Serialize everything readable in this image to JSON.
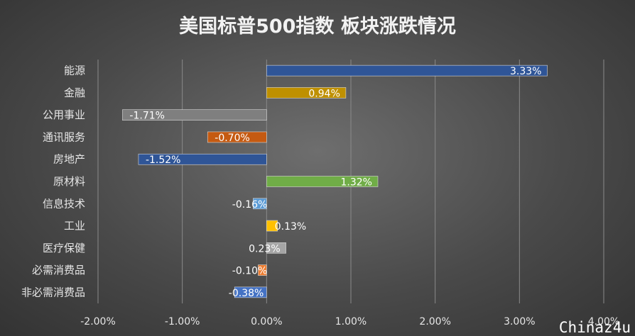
{
  "chart_data": {
    "type": "bar",
    "orientation": "horizontal",
    "title": "美国标普500指数 板块涨跌情况",
    "xlabel": "",
    "ylabel": "",
    "xlim": [
      -2,
      4
    ],
    "x_ticks": [
      "-2.00%",
      "-1.00%",
      "0.00%",
      "1.00%",
      "2.00%",
      "3.00%",
      "4.00%"
    ],
    "grid": true,
    "categories": [
      "能源",
      "金融",
      "公用事业",
      "通讯服务",
      "房地产",
      "原材料",
      "信息技术",
      "工业",
      "医疗保健",
      "必需消费品",
      "非必需消费品"
    ],
    "values": [
      3.33,
      0.94,
      -1.71,
      -0.7,
      -1.52,
      1.32,
      -0.16,
      0.13,
      0.23,
      -0.1,
      -0.38
    ],
    "data_labels": [
      "3.33%",
      "0.94%",
      "-1.71%",
      "-0.70%",
      "-1.52%",
      "1.32%",
      "-0.16%",
      "0.13%",
      "0.23%",
      "-0.10%",
      "-0.38%"
    ],
    "colors": [
      "#2f5597",
      "#bf9000",
      "#7f7f7f",
      "#c55a11",
      "#2f5597",
      "#70ad47",
      "#5b9bd5",
      "#ffc000",
      "#a5a5a5",
      "#ed7d31",
      "#4472c4"
    ]
  },
  "watermark": "Chinaz4u"
}
